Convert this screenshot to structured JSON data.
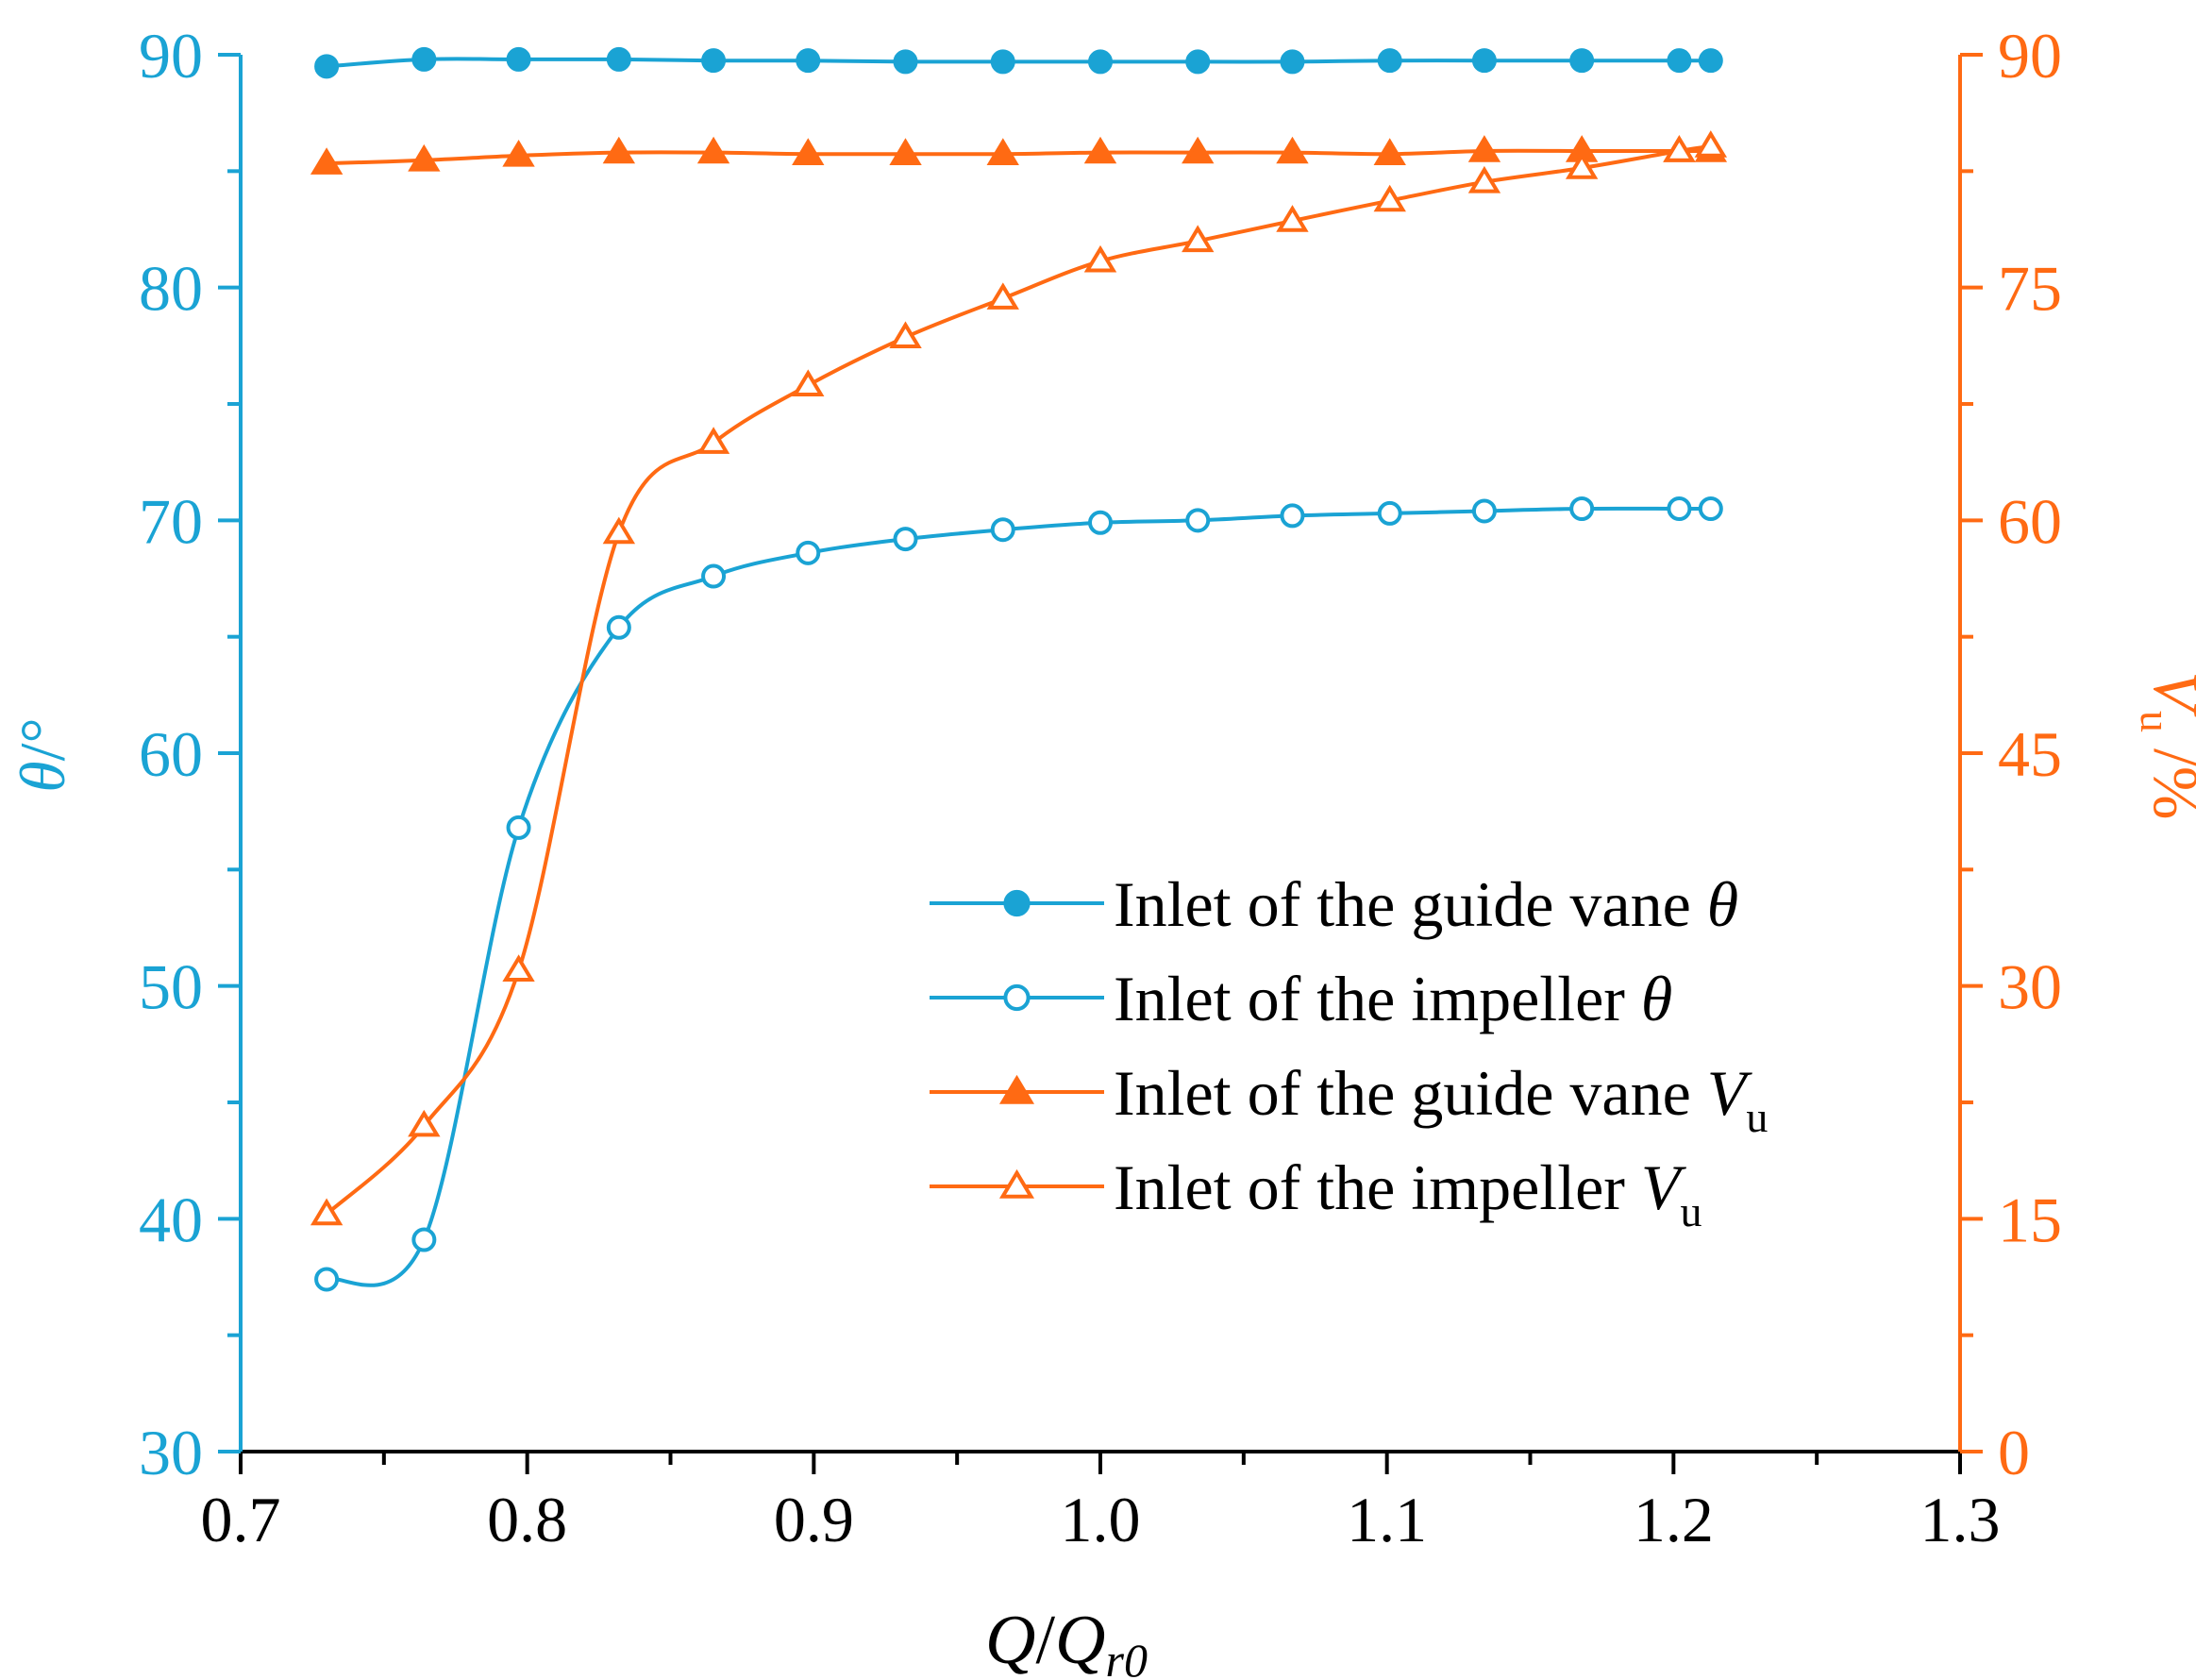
{
  "chart_data": {
    "type": "line",
    "xlabel": "Q/Q_r0",
    "xlabel_parts": {
      "q": "Q",
      "slash": "/",
      "qr": "Q",
      "sub": "r0"
    },
    "ylabel_left_parts": {
      "theta": "θ",
      "unit": "/°"
    },
    "ylabel_right_parts": {
      "v": "V",
      "sub": "u",
      "unit": " /%"
    },
    "xlim": [
      0.7,
      1.3
    ],
    "ylim_left": [
      30,
      90
    ],
    "ylim_right": [
      0,
      90
    ],
    "x_ticks": [
      "0.7",
      "0.8",
      "0.9",
      "1.0",
      "1.1",
      "1.2",
      "1.3"
    ],
    "y_left_ticks": [
      "30",
      "40",
      "50",
      "60",
      "70",
      "80",
      "90"
    ],
    "y_right_ticks": [
      "0",
      "15",
      "30",
      "45",
      "60",
      "75",
      "90"
    ],
    "legend_position": "center-right",
    "colors": {
      "left_axis": "#1aa3d4",
      "right_axis": "#ff6a13",
      "frame": "#000000"
    },
    "x": [
      0.73,
      0.764,
      0.797,
      0.832,
      0.865,
      0.898,
      0.932,
      0.966,
      1.0,
      1.034,
      1.067,
      1.101,
      1.134,
      1.168,
      1.202,
      1.213
    ],
    "series": [
      {
        "name": "Inlet of the guide vane θ",
        "legend": {
          "text": "Inlet of the guide vane ",
          "sym": "θ",
          "sub": ""
        },
        "axis": "left",
        "color": "#1aa3d4",
        "marker": "circle",
        "filled": true,
        "values": [
          89.5,
          89.8,
          89.8,
          89.8,
          89.75,
          89.75,
          89.7,
          89.7,
          89.7,
          89.7,
          89.7,
          89.75,
          89.75,
          89.75,
          89.75,
          89.75
        ]
      },
      {
        "name": "Inlet of the impeller θ",
        "legend": {
          "text": "Inlet of the impeller ",
          "sym": "θ",
          "sub": ""
        },
        "axis": "left",
        "color": "#1aa3d4",
        "marker": "circle",
        "filled": false,
        "values": [
          37.4,
          39.1,
          56.8,
          65.4,
          67.6,
          68.6,
          69.2,
          69.6,
          69.9,
          70.0,
          70.2,
          70.3,
          70.4,
          70.5,
          70.5,
          70.5
        ]
      },
      {
        "name": "Inlet of the guide vane V_u",
        "legend": {
          "text": "Inlet of the guide vane ",
          "sym": "V",
          "sub": "u"
        },
        "axis": "right",
        "color": "#ff6a13",
        "marker": "triangle",
        "filled": true,
        "values": [
          83.0,
          83.2,
          83.5,
          83.7,
          83.7,
          83.6,
          83.6,
          83.6,
          83.7,
          83.7,
          83.7,
          83.6,
          83.8,
          83.8,
          83.8,
          83.8
        ]
      },
      {
        "name": "Inlet of the impeller V_u",
        "legend": {
          "text": "Inlet of the impeller ",
          "sym": "V",
          "sub": "u"
        },
        "axis": "right",
        "color": "#ff6a13",
        "marker": "triangle",
        "filled": false,
        "values": [
          15.3,
          21.0,
          31.0,
          59.2,
          65.0,
          68.7,
          71.8,
          74.3,
          76.7,
          78.0,
          79.3,
          80.6,
          81.8,
          82.7,
          83.8,
          84.1
        ]
      }
    ]
  }
}
